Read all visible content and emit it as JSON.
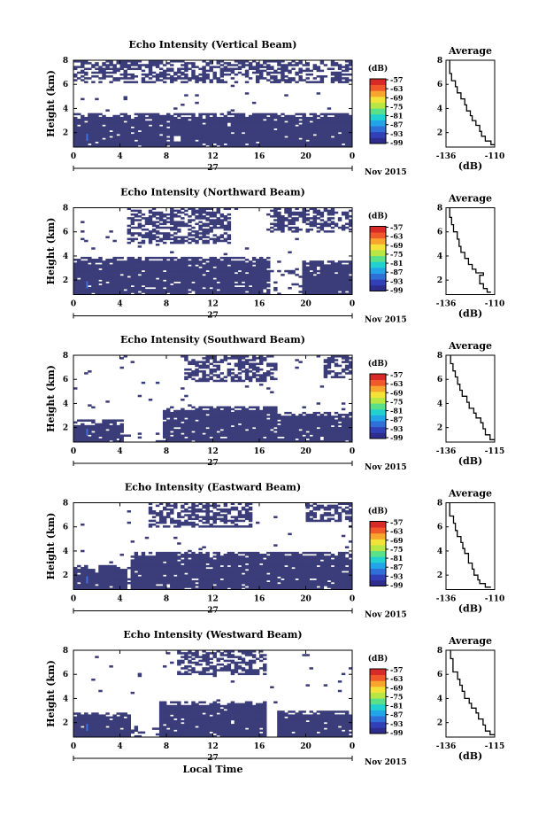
{
  "chart_data": {
    "type": "heatmap",
    "colormap": "jet",
    "echo_color_hex": "#3b3d7a",
    "x_ticks": [
      "0",
      "4",
      "8",
      "12",
      "16",
      "20",
      "0"
    ],
    "date_label": "27",
    "month_label": "Nov 2015",
    "x_label": "Local Time",
    "y_label": "Height (km)",
    "y_ticks": [
      "2",
      "4",
      "6",
      "8"
    ],
    "x_range_hours": [
      0,
      24
    ],
    "y_range_km": [
      0.8,
      8
    ],
    "colorbar_unit": "(dB)",
    "colorbar_ticks": [
      "-57",
      "-63",
      "-69",
      "-75",
      "-81",
      "-87",
      "-93",
      "-99"
    ],
    "profile_title": "Average",
    "profile_x_ticks": [
      "-136",
      "-110"
    ],
    "profile_x_label": "(dB)",
    "profile_y_ticks": [
      "2",
      "4",
      "6",
      "8"
    ],
    "panels": [
      {
        "title": "Echo Intensity (Vertical Beam)",
        "profile_x_ticks": [
          "-136",
          "-110"
        ],
        "low_band": [
          {
            "t0": 0,
            "t1": 17.5,
            "top": 3.6
          },
          {
            "t0": 17.5,
            "t1": 24,
            "top": 3.6
          }
        ],
        "upper_band": [
          {
            "t0": 0,
            "t1": 24,
            "bottom": 6.2
          }
        ],
        "gaps": [
          {
            "t0": 8.5,
            "t1": 9.3,
            "h0": 1.2,
            "h1": 1.8
          }
        ],
        "profile": [
          [
            -110,
            1.0
          ],
          [
            -112,
            1.3
          ],
          [
            -115,
            1.7
          ],
          [
            -117,
            2.1
          ],
          [
            -118,
            2.6
          ],
          [
            -120,
            3.0
          ],
          [
            -122,
            3.4
          ],
          [
            -123,
            3.8
          ],
          [
            -125,
            4.3
          ],
          [
            -126,
            4.8
          ],
          [
            -128,
            5.3
          ],
          [
            -130,
            5.8
          ],
          [
            -131,
            6.3
          ],
          [
            -133,
            6.9
          ],
          [
            -134,
            7.4
          ],
          [
            -134,
            8.0
          ]
        ]
      },
      {
        "title": "Echo Intensity (Northward Beam)",
        "profile_x_ticks": [
          "-136",
          "-110"
        ],
        "low_band": [
          {
            "t0": 0,
            "t1": 16.8,
            "top": 4.0
          },
          {
            "t0": 19.6,
            "t1": 24,
            "top": 3.6
          }
        ],
        "upper_band": [
          {
            "t0": 4.5,
            "t1": 13.5,
            "bottom": 5.0
          },
          {
            "t0": 16.5,
            "t1": 24,
            "bottom": 6.0
          }
        ],
        "gaps": [
          {
            "t0": 16.8,
            "t1": 19.6,
            "h0": 0.8,
            "h1": 3.2
          }
        ],
        "profile": [
          [
            -112,
            1.0
          ],
          [
            -114,
            1.3
          ],
          [
            -116,
            1.7
          ],
          [
            -118,
            2.0
          ],
          [
            -118,
            2.4
          ],
          [
            -116,
            2.6
          ],
          [
            -120,
            2.9
          ],
          [
            -122,
            3.3
          ],
          [
            -124,
            3.8
          ],
          [
            -126,
            4.3
          ],
          [
            -128,
            4.8
          ],
          [
            -129,
            5.4
          ],
          [
            -130,
            6.0
          ],
          [
            -132,
            6.6
          ],
          [
            -133,
            7.2
          ],
          [
            -134,
            8.0
          ]
        ]
      },
      {
        "title": "Echo Intensity (Southward Beam)",
        "profile_x_ticks": [
          "-136",
          "-115"
        ],
        "low_band": [
          {
            "t0": 0,
            "t1": 4.2,
            "top": 2.6
          },
          {
            "t0": 7.8,
            "t1": 17.5,
            "top": 3.8
          },
          {
            "t0": 17.5,
            "t1": 24,
            "top": 3.3
          }
        ],
        "upper_band": [
          {
            "t0": 9.5,
            "t1": 17.5,
            "bottom": 5.8
          },
          {
            "t0": 21.5,
            "t1": 24,
            "bottom": 6.2
          }
        ],
        "gaps": [
          {
            "t0": 4.2,
            "t1": 7.8,
            "h0": 0.8,
            "h1": 1.6
          }
        ],
        "profile": [
          [
            -115,
            1.0
          ],
          [
            -117,
            1.4
          ],
          [
            -119,
            1.9
          ],
          [
            -120,
            2.4
          ],
          [
            -121,
            2.8
          ],
          [
            -123,
            3.2
          ],
          [
            -124,
            3.6
          ],
          [
            -126,
            4.1
          ],
          [
            -127,
            4.6
          ],
          [
            -129,
            5.1
          ],
          [
            -130,
            5.6
          ],
          [
            -131,
            6.2
          ],
          [
            -132,
            6.7
          ],
          [
            -133,
            7.3
          ],
          [
            -134,
            8.0
          ]
        ]
      },
      {
        "title": "Echo Intensity (Eastward Beam)",
        "profile_x_ticks": [
          "-136",
          "-110"
        ],
        "low_band": [
          {
            "t0": 0,
            "t1": 4.5,
            "top": 2.9
          },
          {
            "t0": 5.0,
            "t1": 18.5,
            "top": 4.0
          },
          {
            "t0": 18.5,
            "t1": 24,
            "top": 4.0
          }
        ],
        "upper_band": [
          {
            "t0": 6.5,
            "t1": 15.5,
            "bottom": 6.0
          },
          {
            "t0": 20.0,
            "t1": 24,
            "bottom": 6.5
          }
        ],
        "gaps": [
          {
            "t0": 4.5,
            "t1": 5.0,
            "h0": 0.8,
            "h1": 2.0
          }
        ],
        "profile": [
          [
            -112,
            1.0
          ],
          [
            -115,
            1.3
          ],
          [
            -118,
            1.6
          ],
          [
            -119,
            2.0
          ],
          [
            -121,
            2.5
          ],
          [
            -122,
            3.0
          ],
          [
            -124,
            3.4
          ],
          [
            -124,
            3.8
          ],
          [
            -126,
            4.2
          ],
          [
            -127,
            4.7
          ],
          [
            -128,
            5.2
          ],
          [
            -130,
            5.7
          ],
          [
            -131,
            6.3
          ],
          [
            -132,
            6.9
          ],
          [
            -134,
            7.5
          ],
          [
            -134,
            8.0
          ]
        ]
      },
      {
        "title": "Echo Intensity (Westward Beam)",
        "profile_x_ticks": [
          "-136",
          "-115"
        ],
        "low_band": [
          {
            "t0": 0,
            "t1": 5.0,
            "top": 2.9
          },
          {
            "t0": 7.5,
            "t1": 16.5,
            "top": 3.8
          },
          {
            "t0": 17.5,
            "t1": 24,
            "top": 3.0
          }
        ],
        "upper_band": [
          {
            "t0": 9.0,
            "t1": 16.5,
            "bottom": 6.0
          }
        ],
        "gaps": [
          {
            "t0": 5.0,
            "t1": 7.5,
            "h0": 0.8,
            "h1": 1.8
          }
        ],
        "profile": [
          [
            -115,
            1.0
          ],
          [
            -117,
            1.3
          ],
          [
            -119,
            1.8
          ],
          [
            -120,
            2.3
          ],
          [
            -122,
            2.8
          ],
          [
            -123,
            3.2
          ],
          [
            -125,
            3.6
          ],
          [
            -126,
            4.0
          ],
          [
            -128,
            4.6
          ],
          [
            -129,
            5.1
          ],
          [
            -130,
            5.6
          ],
          [
            -131,
            6.2
          ],
          [
            -133,
            6.7
          ],
          [
            -133,
            7.3
          ],
          [
            -134,
            8.0
          ]
        ]
      }
    ]
  }
}
